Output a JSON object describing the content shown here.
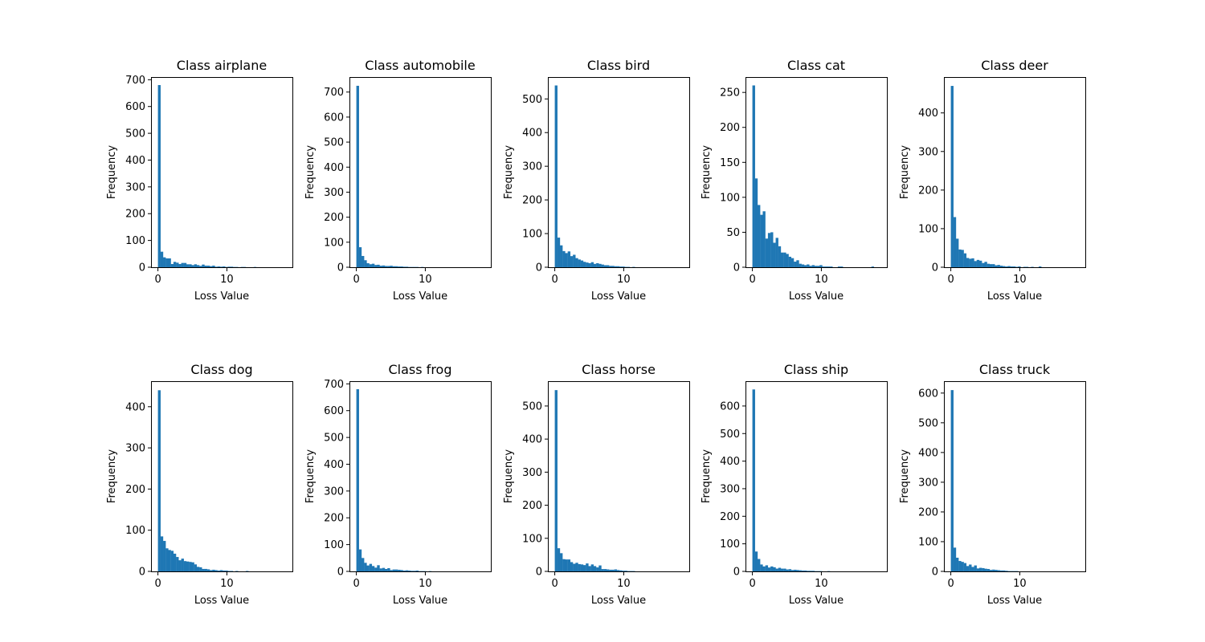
{
  "chart_data": [
    {
      "type": "bar",
      "title": "Class airplane",
      "xlabel": "Loss Value",
      "ylabel": "Frequency",
      "xlim": [
        -1,
        19.5
      ],
      "ylim": [
        0,
        710
      ],
      "xticks": [
        0,
        10
      ],
      "yticks": [
        0,
        100,
        200,
        300,
        400,
        500,
        600,
        700
      ],
      "bin_start": 0,
      "bin_width": 0.375,
      "values": [
        680,
        58,
        37,
        33,
        33,
        12,
        20,
        17,
        12,
        16,
        16,
        11,
        11,
        8,
        11,
        8,
        5,
        10,
        6,
        6,
        4,
        6,
        2,
        3,
        2,
        3,
        1,
        2,
        2,
        1,
        1,
        0,
        1,
        1,
        0,
        0,
        0,
        1,
        0,
        0,
        0,
        0,
        0,
        0,
        0,
        0,
        0,
        0
      ]
    },
    {
      "type": "bar",
      "title": "Class automobile",
      "xlabel": "Loss Value",
      "ylabel": "Frequency",
      "xlim": [
        -1,
        19.5
      ],
      "ylim": [
        0,
        760
      ],
      "xticks": [
        0,
        10
      ],
      "yticks": [
        0,
        100,
        200,
        300,
        400,
        500,
        600,
        700
      ],
      "bin_start": 0,
      "bin_width": 0.375,
      "values": [
        725,
        80,
        45,
        28,
        16,
        12,
        14,
        9,
        10,
        6,
        7,
        5,
        5,
        6,
        4,
        4,
        3,
        3,
        2,
        2,
        1,
        1,
        1,
        1,
        0,
        1,
        0,
        0,
        0,
        0,
        0,
        0,
        0,
        0,
        0,
        0,
        0,
        0,
        0,
        0,
        0,
        0,
        0,
        0,
        0,
        0,
        0,
        0
      ]
    },
    {
      "type": "bar",
      "title": "Class bird",
      "xlabel": "Loss Value",
      "ylabel": "Frequency",
      "xlim": [
        -1,
        19.5
      ],
      "ylim": [
        0,
        565
      ],
      "xticks": [
        0,
        10
      ],
      "yticks": [
        0,
        100,
        200,
        300,
        400,
        500
      ],
      "bin_start": 0,
      "bin_width": 0.375,
      "values": [
        540,
        88,
        65,
        48,
        42,
        47,
        33,
        37,
        27,
        23,
        20,
        16,
        14,
        12,
        15,
        10,
        12,
        10,
        8,
        6,
        6,
        4,
        4,
        3,
        3,
        2,
        2,
        1,
        1,
        0,
        1,
        0,
        0,
        0,
        0,
        0,
        0,
        0,
        0,
        0,
        0,
        0,
        0,
        0,
        0,
        0,
        0,
        0
      ]
    },
    {
      "type": "bar",
      "title": "Class cat",
      "xlabel": "Loss Value",
      "ylabel": "Frequency",
      "xlim": [
        -1,
        19.5
      ],
      "ylim": [
        0,
        272
      ],
      "xticks": [
        0,
        10
      ],
      "yticks": [
        0,
        50,
        100,
        150,
        200,
        250
      ],
      "bin_start": 0,
      "bin_width": 0.375,
      "values": [
        260,
        127,
        89,
        75,
        80,
        41,
        49,
        50,
        35,
        42,
        30,
        21,
        21,
        19,
        15,
        13,
        8,
        10,
        5,
        4,
        3,
        4,
        2,
        3,
        2,
        2,
        3,
        1,
        1,
        1,
        1,
        0,
        0,
        1,
        1,
        0,
        0,
        0,
        0,
        0,
        0,
        0,
        0,
        0,
        0,
        0,
        1,
        0
      ]
    },
    {
      "type": "bar",
      "title": "Class deer",
      "xlabel": "Loss Value",
      "ylabel": "Frequency",
      "xlim": [
        -1,
        19.5
      ],
      "ylim": [
        0,
        493
      ],
      "xticks": [
        0,
        10
      ],
      "yticks": [
        0,
        100,
        200,
        300,
        400
      ],
      "bin_start": 0,
      "bin_width": 0.375,
      "values": [
        470,
        130,
        74,
        46,
        45,
        36,
        24,
        22,
        23,
        16,
        19,
        17,
        11,
        14,
        9,
        8,
        8,
        5,
        6,
        4,
        3,
        2,
        3,
        2,
        2,
        1,
        2,
        0,
        1,
        1,
        0,
        1,
        0,
        0,
        2,
        0,
        0,
        0,
        0,
        0,
        0,
        0,
        0,
        0,
        0,
        0,
        0,
        0
      ]
    },
    {
      "type": "bar",
      "title": "Class dog",
      "xlabel": "Loss Value",
      "ylabel": "Frequency",
      "xlim": [
        -1,
        19.5
      ],
      "ylim": [
        0,
        462
      ],
      "xticks": [
        0,
        10
      ],
      "yticks": [
        0,
        100,
        200,
        300,
        400
      ],
      "bin_start": 0,
      "bin_width": 0.375,
      "values": [
        440,
        85,
        74,
        56,
        52,
        50,
        43,
        35,
        27,
        31,
        25,
        24,
        23,
        22,
        17,
        11,
        10,
        6,
        6,
        5,
        3,
        4,
        3,
        2,
        3,
        2,
        2,
        1,
        1,
        0,
        1,
        0,
        0,
        0,
        1,
        0,
        0,
        0,
        0,
        0,
        0,
        0,
        0,
        0,
        0,
        0,
        0,
        0
      ]
    },
    {
      "type": "bar",
      "title": "Class frog",
      "xlabel": "Loss Value",
      "ylabel": "Frequency",
      "xlim": [
        -1,
        19.5
      ],
      "ylim": [
        0,
        710
      ],
      "xticks": [
        0,
        10
      ],
      "yticks": [
        0,
        100,
        200,
        300,
        400,
        500,
        600,
        700
      ],
      "bin_start": 0,
      "bin_width": 0.375,
      "values": [
        680,
        82,
        50,
        32,
        22,
        28,
        20,
        14,
        23,
        11,
        13,
        9,
        12,
        5,
        7,
        7,
        6,
        5,
        3,
        4,
        3,
        2,
        2,
        3,
        1,
        1,
        1,
        0,
        1,
        0,
        0,
        0,
        0,
        0,
        0,
        0,
        0,
        0,
        0,
        0,
        0,
        0,
        0,
        0,
        0,
        0,
        0,
        0
      ]
    },
    {
      "type": "bar",
      "title": "Class horse",
      "xlabel": "Loss Value",
      "ylabel": "Frequency",
      "xlim": [
        -1,
        19.5
      ],
      "ylim": [
        0,
        575
      ],
      "xticks": [
        0,
        10
      ],
      "yticks": [
        0,
        100,
        200,
        300,
        400,
        500
      ],
      "bin_start": 0,
      "bin_width": 0.375,
      "values": [
        548,
        70,
        55,
        37,
        36,
        36,
        28,
        23,
        26,
        22,
        21,
        19,
        24,
        16,
        21,
        16,
        12,
        18,
        7,
        7,
        6,
        5,
        5,
        6,
        4,
        3,
        2,
        2,
        1,
        1,
        1,
        0,
        0,
        0,
        0,
        0,
        0,
        0,
        0,
        0,
        0,
        0,
        0,
        0,
        0,
        0,
        0,
        0
      ]
    },
    {
      "type": "bar",
      "title": "Class ship",
      "xlabel": "Loss Value",
      "ylabel": "Frequency",
      "xlim": [
        -1,
        19.5
      ],
      "ylim": [
        0,
        690
      ],
      "xticks": [
        0,
        10
      ],
      "yticks": [
        0,
        100,
        200,
        300,
        400,
        500,
        600
      ],
      "bin_start": 0,
      "bin_width": 0.375,
      "values": [
        660,
        72,
        45,
        25,
        18,
        22,
        14,
        18,
        15,
        10,
        13,
        10,
        10,
        7,
        8,
        5,
        6,
        5,
        4,
        3,
        3,
        2,
        2,
        2,
        1,
        1,
        1,
        0,
        0,
        1,
        0,
        0,
        0,
        0,
        0,
        0,
        0,
        0,
        0,
        0,
        0,
        0,
        0,
        0,
        0,
        0,
        0,
        0
      ]
    },
    {
      "type": "bar",
      "title": "Class truck",
      "xlabel": "Loss Value",
      "ylabel": "Frequency",
      "xlim": [
        -1,
        19.5
      ],
      "ylim": [
        0,
        640
      ],
      "xticks": [
        0,
        10
      ],
      "yticks": [
        0,
        100,
        200,
        300,
        400,
        500,
        600
      ],
      "bin_start": 0,
      "bin_width": 0.375,
      "values": [
        610,
        80,
        46,
        35,
        32,
        28,
        18,
        23,
        15,
        20,
        10,
        12,
        11,
        9,
        8,
        5,
        6,
        5,
        4,
        3,
        3,
        2,
        1,
        1,
        1,
        1,
        0,
        0,
        0,
        0,
        0,
        0,
        0,
        0,
        0,
        0,
        0,
        0,
        0,
        0,
        0,
        0,
        0,
        0,
        0,
        0,
        0,
        0
      ]
    }
  ],
  "colors": {
    "bar": "#1f77b4",
    "frame": "#000000",
    "background": "#ffffff"
  }
}
